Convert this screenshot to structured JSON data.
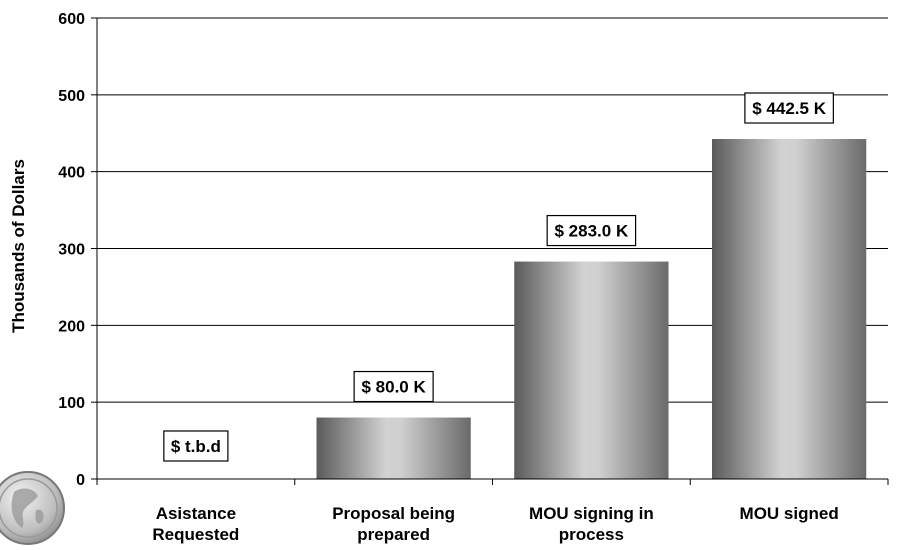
{
  "chart_data": {
    "type": "bar",
    "categories": [
      [
        "Asistance",
        "Requested"
      ],
      [
        "Proposal being",
        "prepared"
      ],
      [
        "MOU signing in",
        "process"
      ],
      [
        "MOU signed"
      ]
    ],
    "values": [
      0,
      80.0,
      283.0,
      442.5
    ],
    "data_labels": [
      "$ t.b.d",
      "$ 80.0 K",
      "$ 283.0 K",
      "$ 442.5 K"
    ],
    "title": "",
    "xlabel": "",
    "ylabel": "Thousands of Dollars",
    "ylim": [
      0,
      600
    ],
    "yticks": [
      0,
      100,
      200,
      300,
      400,
      500,
      600
    ],
    "grid": true,
    "legend": "none",
    "colors": {
      "bar_dark": "#5e5e5e",
      "bar_light": "#d4d4d4",
      "grid": "#000000"
    }
  },
  "decoration": {
    "logo": "globe-seal-icon"
  }
}
